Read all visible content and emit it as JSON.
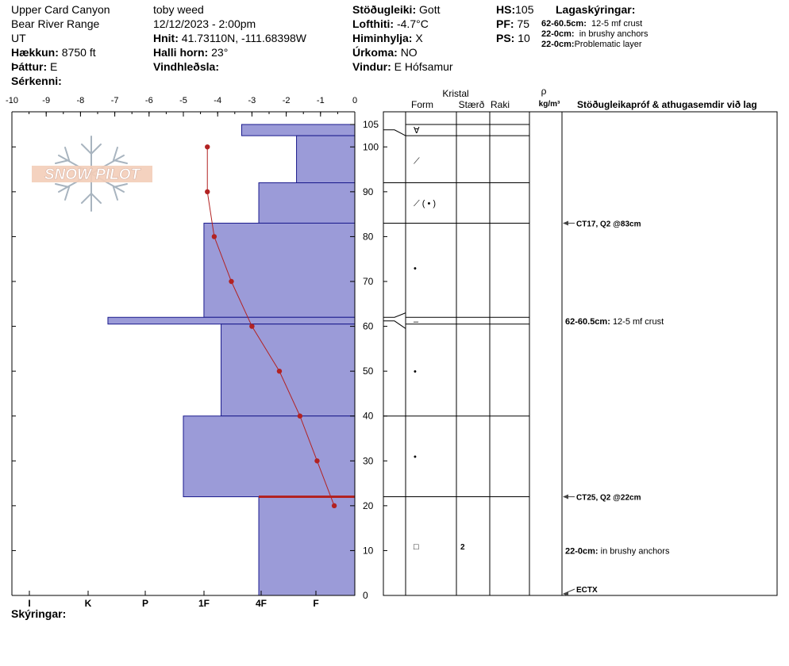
{
  "header": {
    "location": "Upper Card Canyon",
    "range": "Bear River Range",
    "state": "UT",
    "elevation_label": "Hækkun:",
    "elevation": "8750 ft",
    "aspect_label": "Þáttur:",
    "aspect": "E",
    "features_label": "Sérkenni:",
    "observer": "toby weed",
    "datetime": "12/12/2023 - 2:00pm",
    "coords_label": "Hnit:",
    "coords": "41.73110N, -111.68398W",
    "slope_label": "Halli horn:",
    "slope": "23°",
    "wind_loading_label": "Vindhleðsla:",
    "stability_label": "Stöðugleiki:",
    "stability": "Gott",
    "airtemp_label": "Lofthiti:",
    "airtemp": "-4.7°C",
    "sky_label": "Himinhylja:",
    "sky": "X",
    "precip_label": "Úrkoma:",
    "precip": "NO",
    "wind_label": "Vindur:",
    "wind": "E Hófsamur",
    "hs_label": "HS:",
    "hs": "105",
    "pf_label": "PF:",
    "pf": "75",
    "ps_label": "PS:",
    "ps": "10",
    "layer_notes_title": "Lagaskýringar:",
    "layer_notes": [
      {
        "range": "62-60.5cm:",
        "text": "12-5 mf crust"
      },
      {
        "range": "22-0cm:",
        "text": "in brushy anchors"
      },
      {
        "range": "22-0cm:",
        "text": "Problematic layer"
      }
    ],
    "footer_label": "Skýringar:",
    "logo_text": "SNOW PILOT"
  },
  "columns": {
    "crystal": "Kristal",
    "form": "Form",
    "size": "Stærð",
    "moisture": "Raki",
    "rho": "ρ",
    "density_unit": "kg/m³",
    "tests": "Stöðugleikapróf & athugasemdir við lag"
  },
  "chart_data": {
    "type": "bar",
    "temp_axis": {
      "min": -10,
      "max": 0,
      "ticks": [
        "-10",
        "-9",
        "-8",
        "-7",
        "-6",
        "-5",
        "-4",
        "-3",
        "-2",
        "-1",
        "0"
      ]
    },
    "depth_axis": {
      "min": 0,
      "max": 105,
      "ticks": [
        "0",
        "10",
        "20",
        "30",
        "40",
        "50",
        "60",
        "70",
        "80",
        "90",
        "100",
        "105"
      ]
    },
    "hardness_ticks": [
      "I",
      "K",
      "P",
      "1F",
      "4F",
      "F"
    ],
    "hardness_profile": [
      {
        "top": 105,
        "bottom": 102.5,
        "temp_extent": -3.3
      },
      {
        "top": 102.5,
        "bottom": 92,
        "temp_extent": -1.7
      },
      {
        "top": 92,
        "bottom": 83,
        "temp_extent": -2.8
      },
      {
        "top": 83,
        "bottom": 62,
        "temp_extent": -4.4
      },
      {
        "top": 62,
        "bottom": 60.5,
        "temp_extent": -7.2
      },
      {
        "top": 60.5,
        "bottom": 40,
        "temp_extent": -3.9
      },
      {
        "top": 40,
        "bottom": 22,
        "temp_extent": -5.0
      },
      {
        "top": 22,
        "bottom": 0,
        "temp_extent": -2.8
      }
    ],
    "temperature_profile": [
      {
        "depth": 100,
        "temp": -4.3
      },
      {
        "depth": 90,
        "temp": -4.3
      },
      {
        "depth": 80,
        "temp": -4.1
      },
      {
        "depth": 70,
        "temp": -3.6
      },
      {
        "depth": 60,
        "temp": -3.0
      },
      {
        "depth": 50,
        "temp": -2.2
      },
      {
        "depth": 40,
        "temp": -1.6
      },
      {
        "depth": 30,
        "temp": -1.1
      },
      {
        "depth": 20,
        "temp": -0.6
      }
    ],
    "problem_layer_depth": 22,
    "layer_boundaries": [
      105,
      102.5,
      92,
      83,
      62,
      60.5,
      40,
      22,
      0
    ],
    "crystal_symbols": [
      {
        "depth": 103.8,
        "form": "∀",
        "size": ""
      },
      {
        "depth": 97,
        "form": "⟋",
        "size": ""
      },
      {
        "depth": 87.5,
        "form": "⟋ ( • )",
        "size": ""
      },
      {
        "depth": 73,
        "form": "•",
        "size": ""
      },
      {
        "depth": 61.2,
        "form": "–",
        "size": ""
      },
      {
        "depth": 50,
        "form": "•",
        "size": ""
      },
      {
        "depth": 31,
        "form": "•",
        "size": ""
      },
      {
        "depth": 11,
        "form": "□",
        "size": "2"
      }
    ],
    "annotations": [
      {
        "depth": 83,
        "text": "CT17, Q2 @83cm",
        "arrow": true
      },
      {
        "depth": 61.2,
        "range": "62-60.5cm:",
        "text": "12-5 mf crust",
        "arrow": false
      },
      {
        "depth": 22,
        "text": "CT25, Q2 @22cm",
        "arrow": true
      },
      {
        "depth": 10,
        "range": "22-0cm:",
        "text": "in brushy anchors",
        "arrow": false
      },
      {
        "depth": 0,
        "text": "ECTX",
        "arrow": true
      }
    ],
    "colors": {
      "hardness": "#9b9bd8",
      "hardness_edge": "#1a1a8c",
      "temperature": "#b22222",
      "problem": "#b22222"
    }
  }
}
